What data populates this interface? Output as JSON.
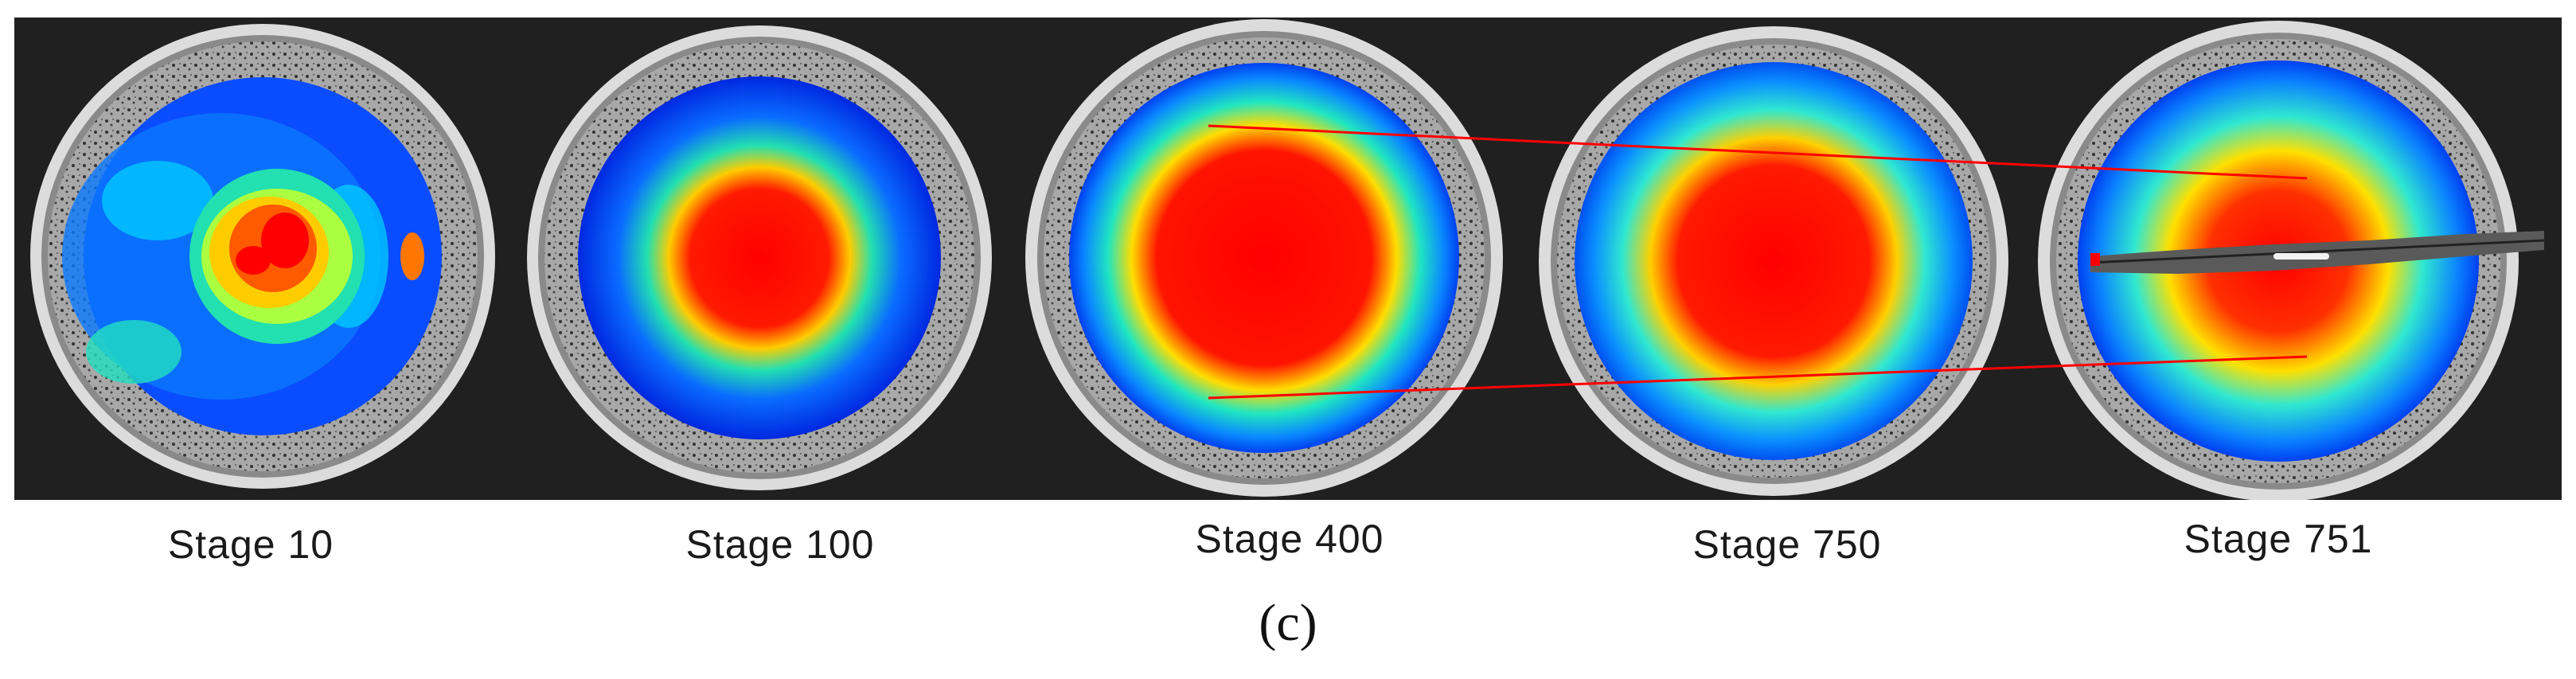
{
  "figure": {
    "panels": [
      {
        "caption": "Stage 10"
      },
      {
        "caption": "Stage 100"
      },
      {
        "caption": "Stage 400"
      },
      {
        "caption": "Stage 750"
      },
      {
        "caption": "Stage 751"
      }
    ],
    "label": "(c)",
    "colors": {
      "high": "#ff0000",
      "mid": "#ffff00",
      "low": "#0000ff",
      "guide_lines": "#ff0000"
    }
  }
}
